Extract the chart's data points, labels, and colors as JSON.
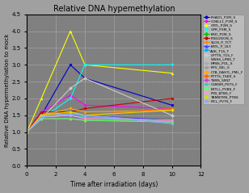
{
  "title": "Relative DNA hypemethylation",
  "xlabel": "Time after irradiation (days)",
  "ylabel": "Relative DNA hypermethylation to mock",
  "xlim": [
    0,
    12
  ],
  "ylim": [
    0.0,
    4.5
  ],
  "yticks": [
    0.0,
    0.5,
    1.0,
    1.5,
    2.0,
    2.5,
    3.0,
    3.5,
    4.0,
    4.5
  ],
  "xticks": [
    0,
    2,
    4,
    6,
    8,
    10,
    12
  ],
  "bg_color": "#808080",
  "series": [
    {
      "label": "FHAD1_P2M_S",
      "color": "#0000cd",
      "marker": "o",
      "data": [
        [
          0,
          1.0
        ],
        [
          1,
          1.5
        ],
        [
          3,
          3.0
        ],
        [
          4,
          2.6
        ],
        [
          10,
          1.8
        ]
      ]
    },
    {
      "label": "COBLL1_P1M_S",
      "color": "#ff00ff",
      "marker": "s",
      "data": [
        [
          0,
          1.0
        ],
        [
          1,
          1.6
        ],
        [
          3,
          2.1
        ],
        [
          4,
          1.8
        ],
        [
          10,
          1.7
        ]
      ]
    },
    {
      "label": "CRTL_P2M_S",
      "color": "#ffff00",
      "marker": "^",
      "data": [
        [
          0,
          1.0
        ],
        [
          1,
          2.0
        ],
        [
          3,
          4.0
        ],
        [
          4,
          3.0
        ],
        [
          10,
          2.75
        ]
      ]
    },
    {
      "label": "GPR_P3M_S",
      "color": "#00ffff",
      "marker": "v",
      "data": [
        [
          0,
          1.0
        ],
        [
          1,
          1.4
        ],
        [
          3,
          2.0
        ],
        [
          4,
          3.0
        ],
        [
          10,
          3.0
        ]
      ]
    },
    {
      "label": "BRD_P2M_S",
      "color": "#00cc00",
      "marker": "D",
      "data": [
        [
          0,
          1.0
        ],
        [
          1,
          1.5
        ],
        [
          3,
          1.6
        ],
        [
          4,
          1.4
        ],
        [
          10,
          1.3
        ]
      ]
    },
    {
      "label": "ITBG2DON_S",
      "color": "#cc0000",
      "marker": "o",
      "data": [
        [
          0,
          1.0
        ],
        [
          1,
          1.6
        ],
        [
          3,
          1.6
        ],
        [
          4,
          1.7
        ],
        [
          10,
          2.0
        ]
      ]
    },
    {
      "label": "SLOS_P_TCT",
      "color": "#ff8800",
      "marker": "s",
      "data": [
        [
          0,
          1.0
        ],
        [
          1,
          1.5
        ],
        [
          3,
          1.5
        ],
        [
          4,
          1.4
        ],
        [
          10,
          1.35
        ]
      ]
    },
    {
      "label": "BRTL_P_OLT",
      "color": "#4444ff",
      "marker": "^",
      "data": [
        [
          0,
          1.0
        ],
        [
          1,
          1.5
        ],
        [
          3,
          1.55
        ],
        [
          4,
          1.5
        ],
        [
          10,
          1.35
        ]
      ]
    },
    {
      "label": "AUK_T1S_T",
      "color": "#00aaff",
      "marker": "v",
      "data": [
        [
          0,
          1.0
        ],
        [
          1,
          1.4
        ],
        [
          3,
          1.45
        ],
        [
          4,
          1.4
        ],
        [
          10,
          1.35
        ]
      ]
    },
    {
      "label": "CPTTS_T1S_F",
      "color": "#cccccc",
      "marker": "D",
      "data": [
        [
          0,
          1.0
        ],
        [
          1,
          1.4
        ],
        [
          3,
          2.3
        ],
        [
          4,
          2.6
        ],
        [
          10,
          1.5
        ]
      ]
    },
    {
      "label": "WNSS_LPBS_T",
      "color": "#bbbbbb",
      "marker": "s",
      "data": [
        [
          0,
          1.0
        ],
        [
          1,
          1.45
        ],
        [
          3,
          1.5
        ],
        [
          4,
          1.4
        ],
        [
          10,
          1.35
        ]
      ]
    },
    {
      "label": "MFBS_POL_S",
      "color": "#aaaaaa",
      "marker": "o",
      "data": [
        [
          0,
          1.0
        ],
        [
          1,
          1.5
        ],
        [
          3,
          1.55
        ],
        [
          4,
          1.5
        ],
        [
          10,
          1.3
        ]
      ]
    },
    {
      "label": "RPV_SEL_S",
      "color": "#999999",
      "marker": "^",
      "data": [
        [
          0,
          1.0
        ],
        [
          1,
          1.4
        ],
        [
          3,
          1.4
        ],
        [
          4,
          1.35
        ],
        [
          10,
          1.3
        ]
      ]
    },
    {
      "label": "CTB_DASTL_PML_F",
      "color": "#ffaa00",
      "marker": "v",
      "data": [
        [
          0,
          1.0
        ],
        [
          1,
          1.5
        ],
        [
          3,
          1.7
        ],
        [
          4,
          1.6
        ],
        [
          10,
          1.65
        ]
      ]
    },
    {
      "label": "PTTTS_TSER_S",
      "color": "#ff6600",
      "marker": "D",
      "data": [
        [
          0,
          1.0
        ],
        [
          1,
          1.5
        ],
        [
          3,
          1.6
        ],
        [
          4,
          1.5
        ],
        [
          10,
          1.7
        ]
      ]
    },
    {
      "label": "TSMS_SMLT",
      "color": "#cc44cc",
      "marker": "o",
      "data": [
        [
          0,
          1.0
        ],
        [
          1,
          1.4
        ],
        [
          3,
          1.45
        ],
        [
          4,
          1.4
        ],
        [
          10,
          1.35
        ]
      ]
    },
    {
      "label": "CSMSM_PSTS_F",
      "color": "#33cccc",
      "marker": "s",
      "data": [
        [
          0,
          1.0
        ],
        [
          1,
          1.45
        ],
        [
          3,
          1.5
        ],
        [
          4,
          1.45
        ],
        [
          10,
          1.3
        ]
      ]
    },
    {
      "label": "BTTLL_PVBS_F",
      "color": "#66ff66",
      "marker": "^",
      "data": [
        [
          0,
          1.0
        ],
        [
          1,
          1.4
        ],
        [
          3,
          1.4
        ],
        [
          4,
          1.35
        ],
        [
          10,
          1.3
        ]
      ]
    },
    {
      "label": "PTB_BTBS_F",
      "color": "#ff99cc",
      "marker": "v",
      "data": [
        [
          0,
          1.0
        ],
        [
          1,
          1.45
        ],
        [
          3,
          1.5
        ],
        [
          4,
          1.4
        ],
        [
          10,
          1.35
        ]
      ]
    },
    {
      "label": "TBMBTMS_PTBS",
      "color": "#dddd00",
      "marker": "D",
      "data": [
        [
          0,
          1.0
        ],
        [
          1,
          1.5
        ],
        [
          3,
          1.6
        ],
        [
          4,
          1.5
        ],
        [
          10,
          1.65
        ]
      ]
    },
    {
      "label": "MCL_PVTS_F",
      "color": "#88aaff",
      "marker": "o",
      "data": [
        [
          0,
          1.0
        ],
        [
          1,
          1.45
        ],
        [
          3,
          1.55
        ],
        [
          4,
          1.5
        ],
        [
          10,
          1.25
        ]
      ]
    }
  ]
}
